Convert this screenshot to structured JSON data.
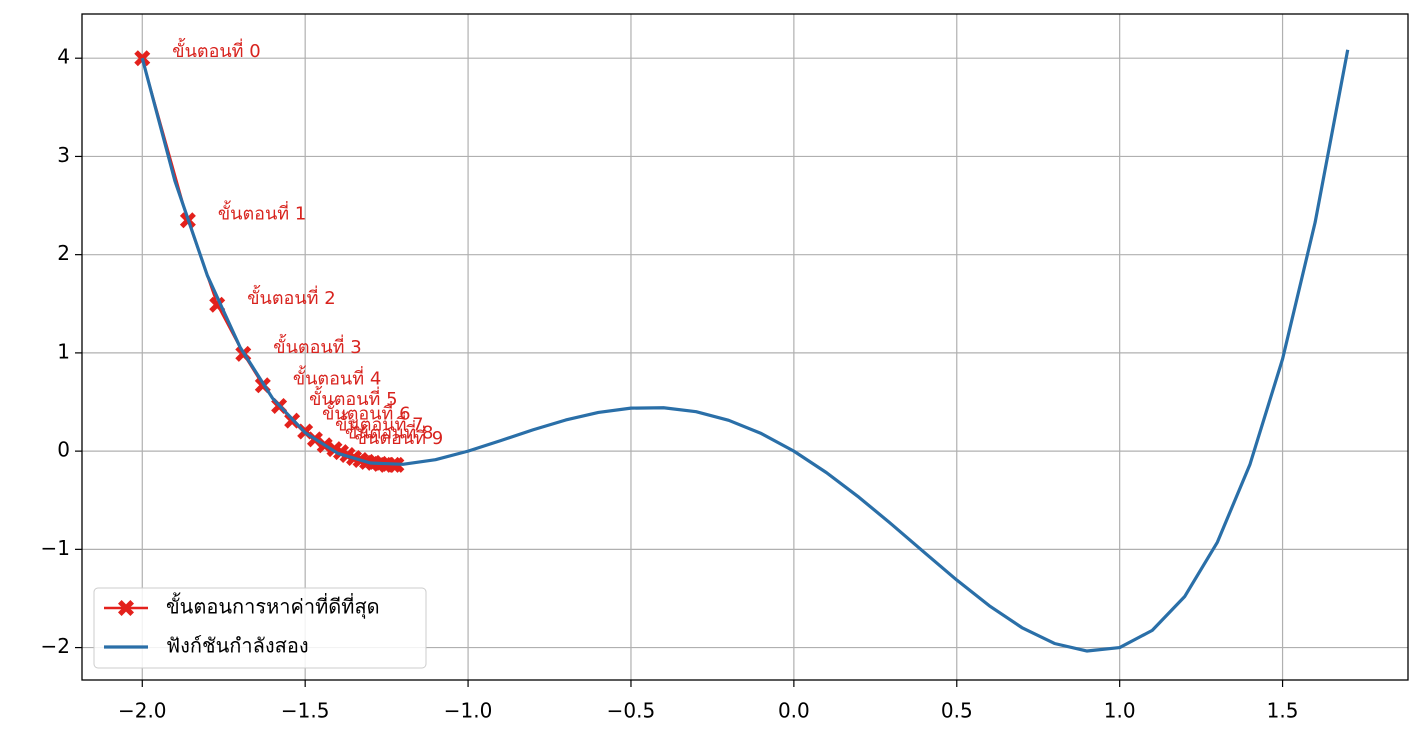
{
  "chart_data": {
    "type": "line",
    "xlim": [
      -2.185,
      1.885
    ],
    "ylim": [
      -2.33,
      4.45
    ],
    "xticks": [
      {
        "value": -2.0,
        "label": "−2.0"
      },
      {
        "value": -1.5,
        "label": "−1.5"
      },
      {
        "value": -1.0,
        "label": "−1.0"
      },
      {
        "value": -0.5,
        "label": "−0.5"
      },
      {
        "value": 0.0,
        "label": "0.0"
      },
      {
        "value": 0.5,
        "label": "0.5"
      },
      {
        "value": 1.0,
        "label": "1.0"
      },
      {
        "value": 1.5,
        "label": "1.5"
      }
    ],
    "yticks": [
      {
        "value": -2,
        "label": "−2"
      },
      {
        "value": -1,
        "label": "−1"
      },
      0,
      1,
      2,
      3,
      4
    ],
    "grid": true,
    "legend": "lower left",
    "series": [
      {
        "name": "ขั้นตอนการหาค่าที่ดีที่สุด",
        "color": "#e3211c",
        "marker": "X",
        "x": [
          -2.0,
          -1.86,
          -1.77,
          -1.69,
          -1.63,
          -1.58,
          -1.54,
          -1.5,
          -1.47,
          -1.44,
          -1.41,
          -1.39,
          -1.37,
          -1.35,
          -1.33,
          -1.31,
          -1.29,
          -1.27,
          -1.25,
          -1.23,
          -1.22
        ],
        "values": [
          4.0,
          2.35,
          1.49,
          0.99,
          0.67,
          0.46,
          0.31,
          0.2,
          0.12,
          0.06,
          0.02,
          -0.01,
          -0.04,
          -0.07,
          -0.09,
          -0.11,
          -0.12,
          -0.13,
          -0.14,
          -0.14,
          -0.14
        ]
      },
      {
        "name": "ฟังก์ชันกำลังสอง",
        "color": "#2a6fa8",
        "x": [
          -2.0,
          -1.9,
          -1.8,
          -1.7,
          -1.6,
          -1.5,
          -1.4,
          -1.3,
          -1.2,
          -1.1,
          -1.0,
          -0.9,
          -0.8,
          -0.7,
          -0.6,
          -0.5,
          -0.4,
          -0.3,
          -0.2,
          -0.1,
          0.0,
          0.1,
          0.2,
          0.3,
          0.4,
          0.5,
          0.6,
          0.7,
          0.8,
          0.9,
          1.0,
          1.1,
          1.2,
          1.3,
          1.4,
          1.5,
          1.6,
          1.7
        ],
        "values": [
          4.0,
          2.7531,
          1.7856,
          1.0591,
          0.5376,
          0.1875,
          -0.0224,
          -0.1209,
          -0.1344,
          -0.0869,
          0.0,
          0.1071,
          0.2176,
          0.3171,
          0.3936,
          0.4375,
          0.4416,
          0.4011,
          0.3136,
          0.1791,
          0.0,
          -0.2189,
          -0.4704,
          -0.7449,
          -1.0304,
          -1.3125,
          -1.5744,
          -1.7969,
          -1.9584,
          -2.0349,
          -2.0,
          -1.8249,
          -1.4784,
          -0.9269,
          -0.1344,
          0.9375,
          2.3296,
          4.0851
        ]
      }
    ],
    "annotations": [
      {
        "text": "ขั้นตอนที่ 0",
        "x": -2.0,
        "y": 4.0
      },
      {
        "text": "ขั้นตอนที่ 1",
        "x": -1.86,
        "y": 2.35
      },
      {
        "text": "ขั้นตอนที่ 2",
        "x": -1.77,
        "y": 1.49
      },
      {
        "text": "ขั้นตอนที่ 3",
        "x": -1.69,
        "y": 0.99
      },
      {
        "text": "ขั้นตอนที่ 4",
        "x": -1.63,
        "y": 0.67
      },
      {
        "text": "ขั้นตอนที่ 5",
        "x": -1.58,
        "y": 0.46
      },
      {
        "text": "ขั้นตอนที่ 6",
        "x": -1.54,
        "y": 0.31
      },
      {
        "text": "ขั้นตอนที่ 7",
        "x": -1.5,
        "y": 0.2
      },
      {
        "text": "ขั้นตอนที่ 8",
        "x": -1.47,
        "y": 0.12
      },
      {
        "text": "ขั้นตอนที่ 9",
        "x": -1.44,
        "y": 0.06
      }
    ]
  }
}
